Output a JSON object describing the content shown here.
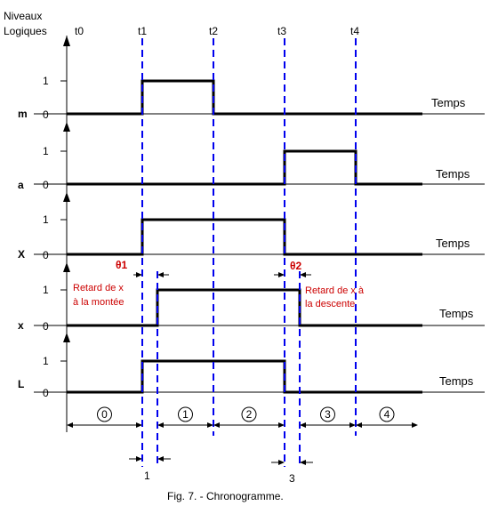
{
  "y_axis_title": [
    "Niveaux",
    "Logiques"
  ],
  "time_marks": [
    "t0",
    "t1",
    "t2",
    "t3",
    "t4"
  ],
  "level_labels": {
    "high": "1",
    "low": "0"
  },
  "time_axis_label": "Temps",
  "signals": [
    {
      "name": "m",
      "high_intervals": [
        [
          "t1",
          "t2"
        ]
      ]
    },
    {
      "name": "a",
      "high_intervals": [
        [
          "t3",
          "t4"
        ]
      ]
    },
    {
      "name": "X",
      "high_intervals": [
        [
          "t1",
          "t3"
        ]
      ]
    },
    {
      "name": "x",
      "high_intervals": [
        [
          "t1+θ1",
          "t3+θ2"
        ]
      ]
    },
    {
      "name": "L",
      "high_intervals": [
        [
          "t1",
          "t3"
        ]
      ]
    }
  ],
  "delays": {
    "theta1": "θ1",
    "theta2": "θ2",
    "rise_note": [
      "Retard de x",
      "à la montée"
    ],
    "fall_note": [
      "Retard de x à",
      "la descente"
    ]
  },
  "phases": [
    "0",
    "1",
    "2",
    "3",
    "4"
  ],
  "bottom_marks": [
    "1",
    "3"
  ],
  "caption": "Fig. 7. - Chronogramme.",
  "colors": {
    "signal": "#000000",
    "dashed": "#0000ee",
    "annotation": "#cc0000"
  }
}
